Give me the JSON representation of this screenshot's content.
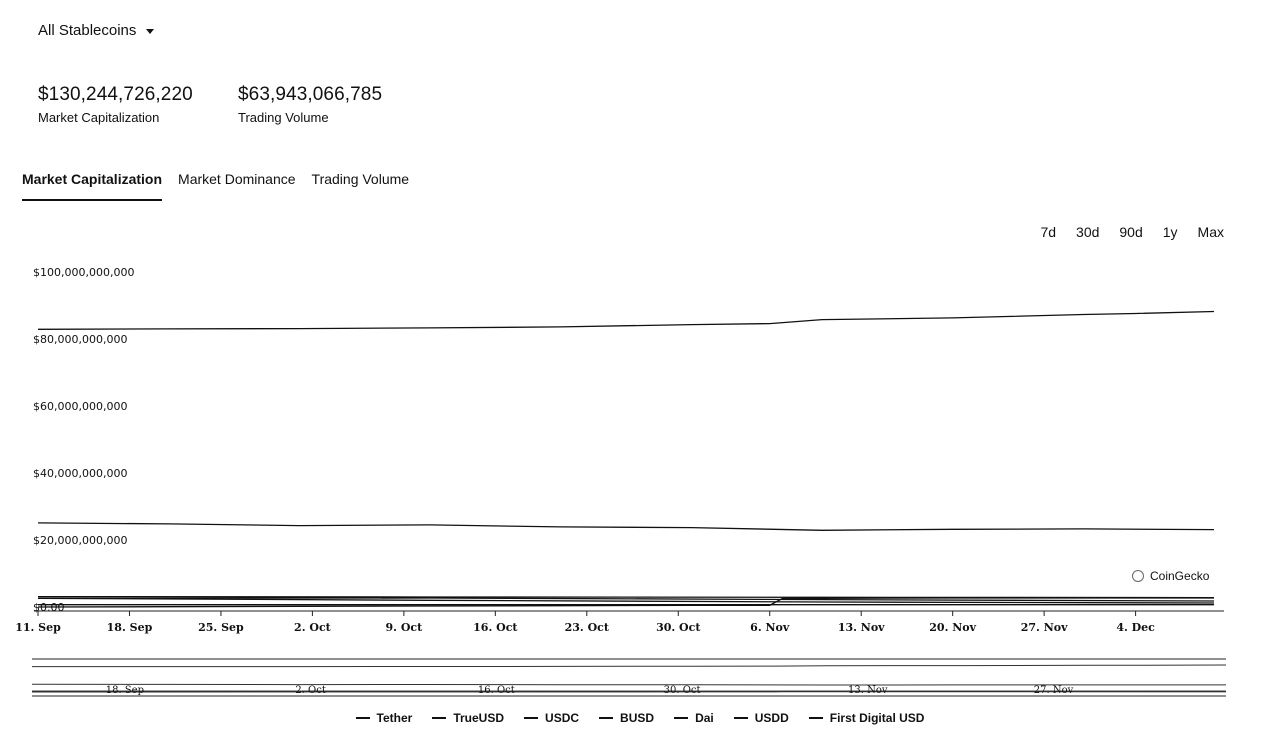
{
  "selector": {
    "label": "All Stablecoins",
    "icon": "caret-down-icon"
  },
  "stats": [
    {
      "value": "$130,244,726,220",
      "caption": "Market Capitalization"
    },
    {
      "value": "$63,943,066,785",
      "caption": "Trading Volume"
    }
  ],
  "tabs": [
    {
      "label": "Market Capitalization",
      "active": true
    },
    {
      "label": "Market Dominance",
      "active": false
    },
    {
      "label": "Trading Volume",
      "active": false
    }
  ],
  "ranges": [
    "7d",
    "30d",
    "90d",
    "1y",
    "Max"
  ],
  "credit": "CoinGecko",
  "chart_data": {
    "type": "line",
    "title": "",
    "xlabel": "",
    "ylabel": "",
    "ylim": [
      0,
      100000000000
    ],
    "y_ticks": [
      "$100,000,000,000",
      "$80,000,000,000",
      "$60,000,000,000",
      "$40,000,000,000",
      "$20,000,000,000",
      "$0.00"
    ],
    "y_tick_values": [
      100000000000,
      80000000000,
      60000000000,
      40000000000,
      20000000000,
      0
    ],
    "x_ticks": [
      "11. Sep",
      "18. Sep",
      "25. Sep",
      "2. Oct",
      "9. Oct",
      "16. Oct",
      "23. Oct",
      "30. Oct",
      "6. Nov",
      "13. Nov",
      "20. Nov",
      "27. Nov",
      "4. Dec"
    ],
    "x_range_days": [
      0,
      90
    ],
    "grid": false,
    "legend_position": "bottom",
    "navigator_ticks": [
      "18. Sep",
      "2. Oct",
      "16. Oct",
      "30. Oct",
      "13. Nov",
      "27. Nov"
    ],
    "series": [
      {
        "name": "Tether",
        "x": [
          0,
          10,
          20,
          30,
          40,
          50,
          56,
          60,
          70,
          80,
          84,
          90
        ],
        "values": [
          82900000000,
          83000000000,
          83100000000,
          83300000000,
          83600000000,
          84300000000,
          84600000000,
          85800000000,
          86300000000,
          87300000000,
          87600000000,
          88200000000
        ]
      },
      {
        "name": "USDC",
        "x": [
          0,
          10,
          20,
          30,
          40,
          50,
          60,
          70,
          80,
          90
        ],
        "values": [
          25100000000,
          24800000000,
          24300000000,
          24500000000,
          23900000000,
          23700000000,
          22900000000,
          23200000000,
          23300000000,
          23100000000
        ]
      },
      {
        "name": "First Digital USD",
        "x": [
          0,
          10,
          20,
          30,
          40,
          50,
          56,
          57,
          60,
          70,
          80,
          90
        ],
        "values": [
          0,
          100000000,
          200000000,
          300000000,
          400000000,
          500000000,
          500000000,
          2600000000,
          2600000000,
          2700000000,
          2700000000,
          2700000000
        ]
      },
      {
        "name": "Dai",
        "x": [
          0,
          30,
          60,
          90
        ],
        "values": [
          3100000000,
          3000000000,
          2900000000,
          2800000000
        ]
      },
      {
        "name": "BUSD",
        "x": [
          0,
          30,
          60,
          90
        ],
        "values": [
          2600000000,
          2000000000,
          1500000000,
          1200000000
        ]
      },
      {
        "name": "TrueUSD",
        "x": [
          0,
          30,
          60,
          90
        ],
        "values": [
          2600000000,
          2700000000,
          2200000000,
          1800000000
        ]
      },
      {
        "name": "USDD",
        "x": [
          0,
          30,
          60,
          90
        ],
        "values": [
          700000000,
          700000000,
          700000000,
          700000000
        ]
      }
    ],
    "legend_order": [
      "Tether",
      "TrueUSD",
      "USDC",
      "BUSD",
      "Dai",
      "USDD",
      "First Digital USD"
    ]
  }
}
